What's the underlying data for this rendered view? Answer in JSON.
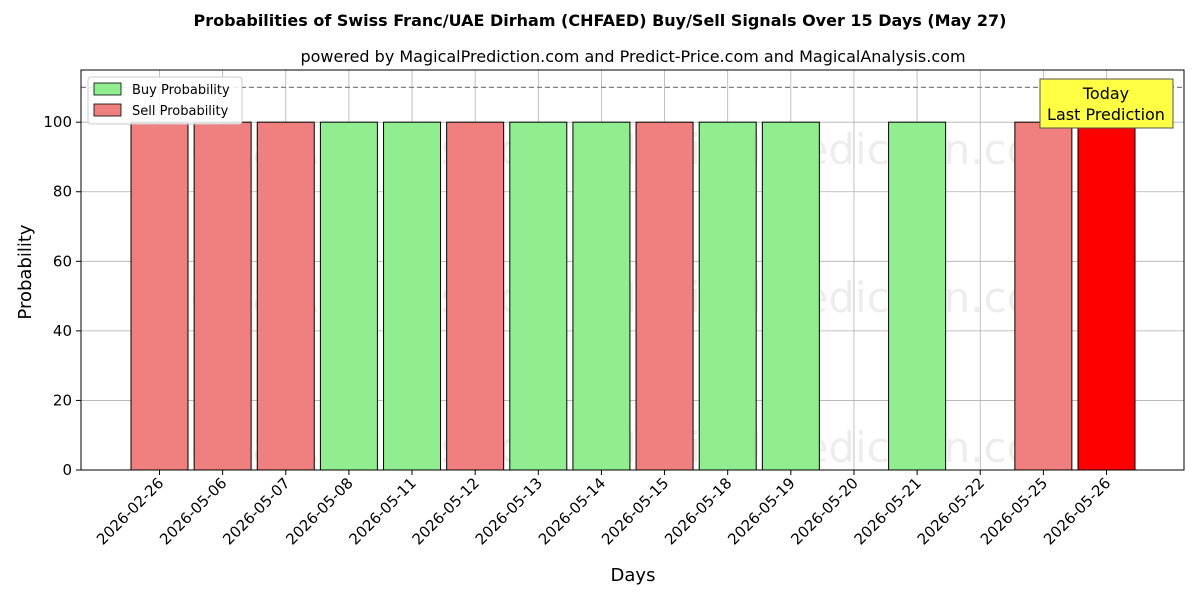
{
  "chart_data": {
    "type": "bar",
    "title": "Probabilities of Swiss Franc/UAE Dirham (CHFAED) Buy/Sell Signals Over 15 Days (May 27)",
    "subtitle": "powered by MagicalPrediction.com and Predict-Price.com and MagicalAnalysis.com",
    "xlabel": "Days",
    "ylabel": "Probability",
    "ylim": [
      0,
      115
    ],
    "yticks": [
      0,
      20,
      40,
      60,
      80,
      100
    ],
    "grid": true,
    "legend_position": "top-left",
    "reference_line": 110,
    "categories": [
      "2026-02-26",
      "2026-05-06",
      "2026-05-07",
      "2026-05-08",
      "2026-05-11",
      "2026-05-12",
      "2026-05-13",
      "2026-05-14",
      "2026-05-15",
      "2026-05-18",
      "2026-05-19",
      "2026-05-20",
      "2026-05-21",
      "2026-05-22",
      "2026-05-25",
      "2026-05-26"
    ],
    "series": [
      {
        "name": "Buy Probability",
        "color": "#90ee90",
        "values": [
          0,
          0,
          0,
          100,
          100,
          0,
          100,
          100,
          0,
          100,
          100,
          0,
          100,
          0,
          0,
          0
        ]
      },
      {
        "name": "Sell Probability",
        "color": "#f08080",
        "values": [
          100,
          100,
          100,
          0,
          0,
          100,
          0,
          0,
          100,
          0,
          0,
          0,
          0,
          0,
          100,
          100
        ]
      }
    ],
    "highlight": {
      "index": 15,
      "color": "#ff0000"
    },
    "annotation": {
      "lines": [
        "Today",
        "Last Prediction"
      ],
      "background": "#ffff44"
    },
    "watermarks": [
      "MagicalAnalysis.com",
      "MagicalPrediction.com"
    ]
  }
}
